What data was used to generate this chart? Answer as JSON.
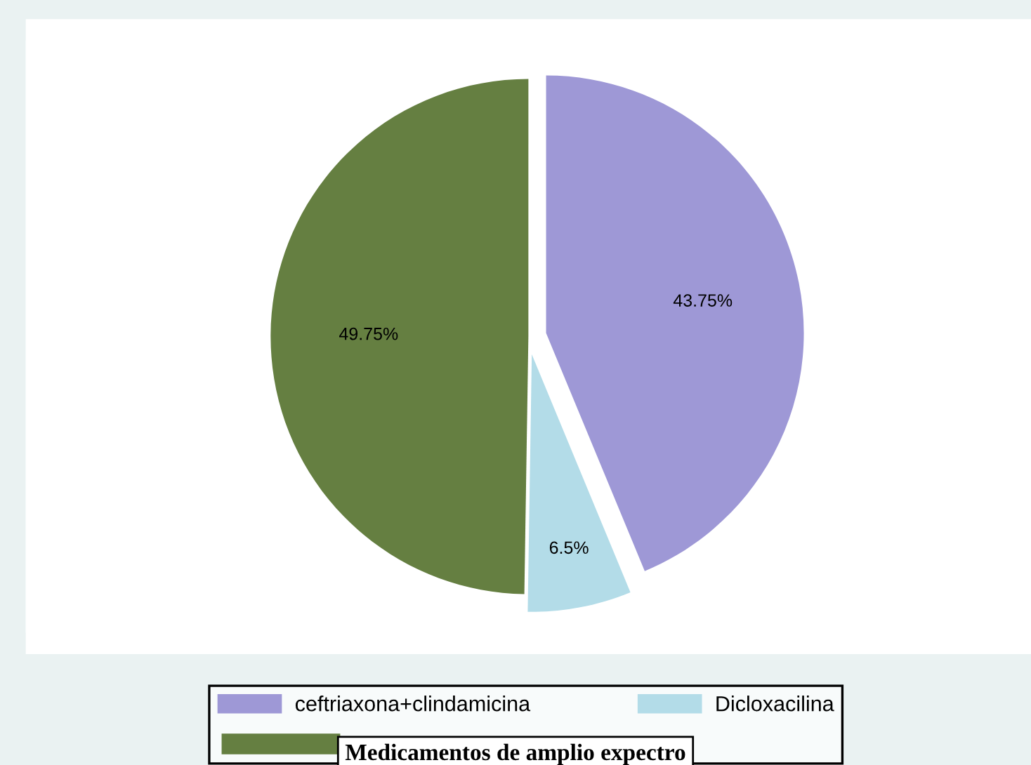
{
  "chart_data": {
    "type": "pie",
    "title": "Medicamentos de amplio expectro",
    "categories": [
      "ceftriaxona+clindamicina",
      "Dicloxacilina",
      null
    ],
    "values": [
      43.75,
      6.5,
      49.75
    ],
    "colors": [
      "#9e98d6",
      "#b3dce8",
      "#657f41"
    ],
    "value_labels": [
      "43.75%",
      "6.5%",
      "49.75%"
    ],
    "legend": "bottom"
  }
}
